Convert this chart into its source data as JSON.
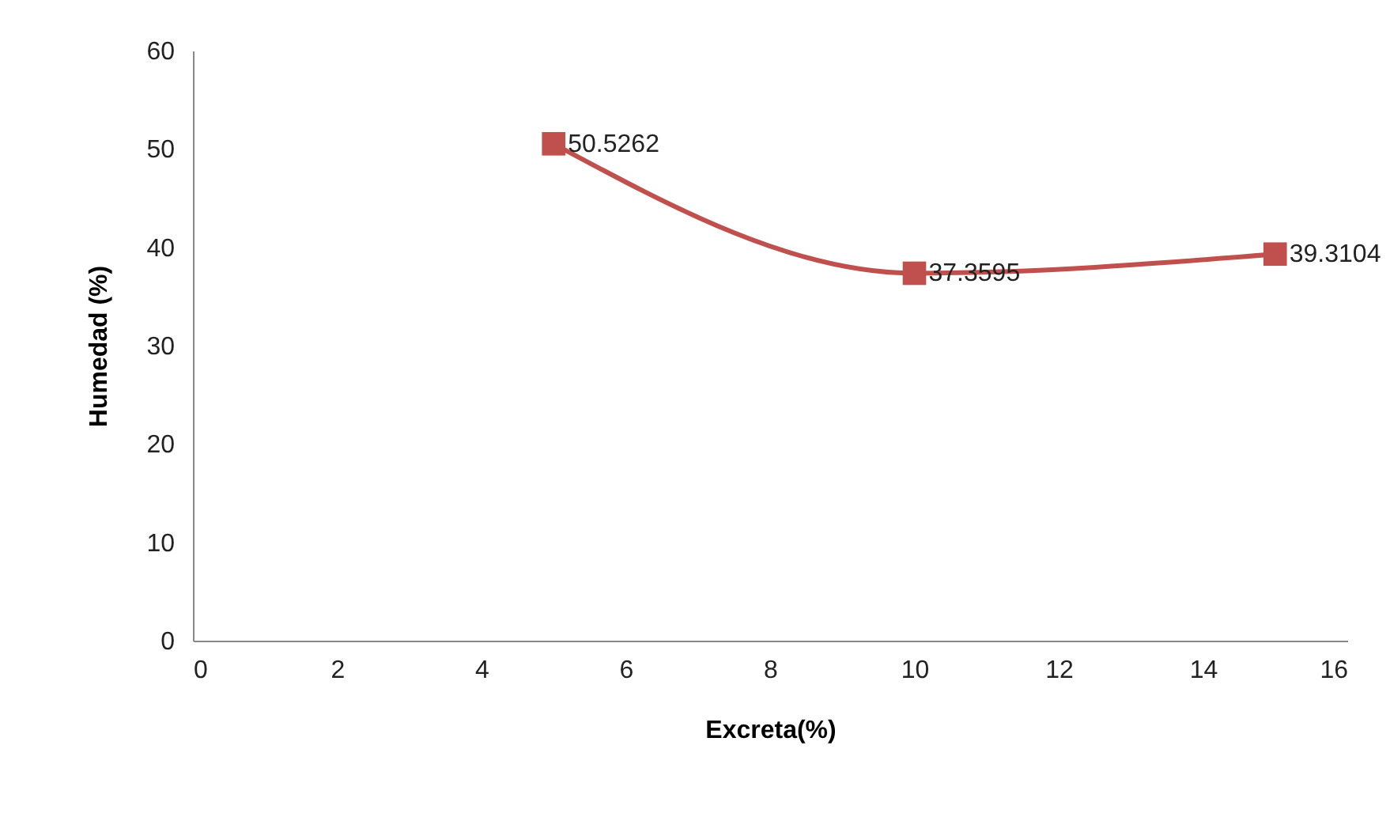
{
  "chart_data": {
    "type": "line",
    "xlabel": "Excreta(%)",
    "ylabel": "Humedad (%)",
    "x": [
      5,
      10,
      15
    ],
    "series": [
      {
        "color": "#c0504d",
        "values": [
          50.5262,
          37.3595,
          39.3104
        ]
      }
    ],
    "xlim": [
      0,
      16
    ],
    "xticks": [
      0,
      2,
      4,
      6,
      8,
      10,
      12,
      14,
      16
    ],
    "ylim": [
      0,
      60
    ],
    "yticks": [
      0,
      10,
      20,
      30,
      40,
      50,
      60
    ],
    "marker": "square",
    "line_style": "solid",
    "data_labels": true
  }
}
